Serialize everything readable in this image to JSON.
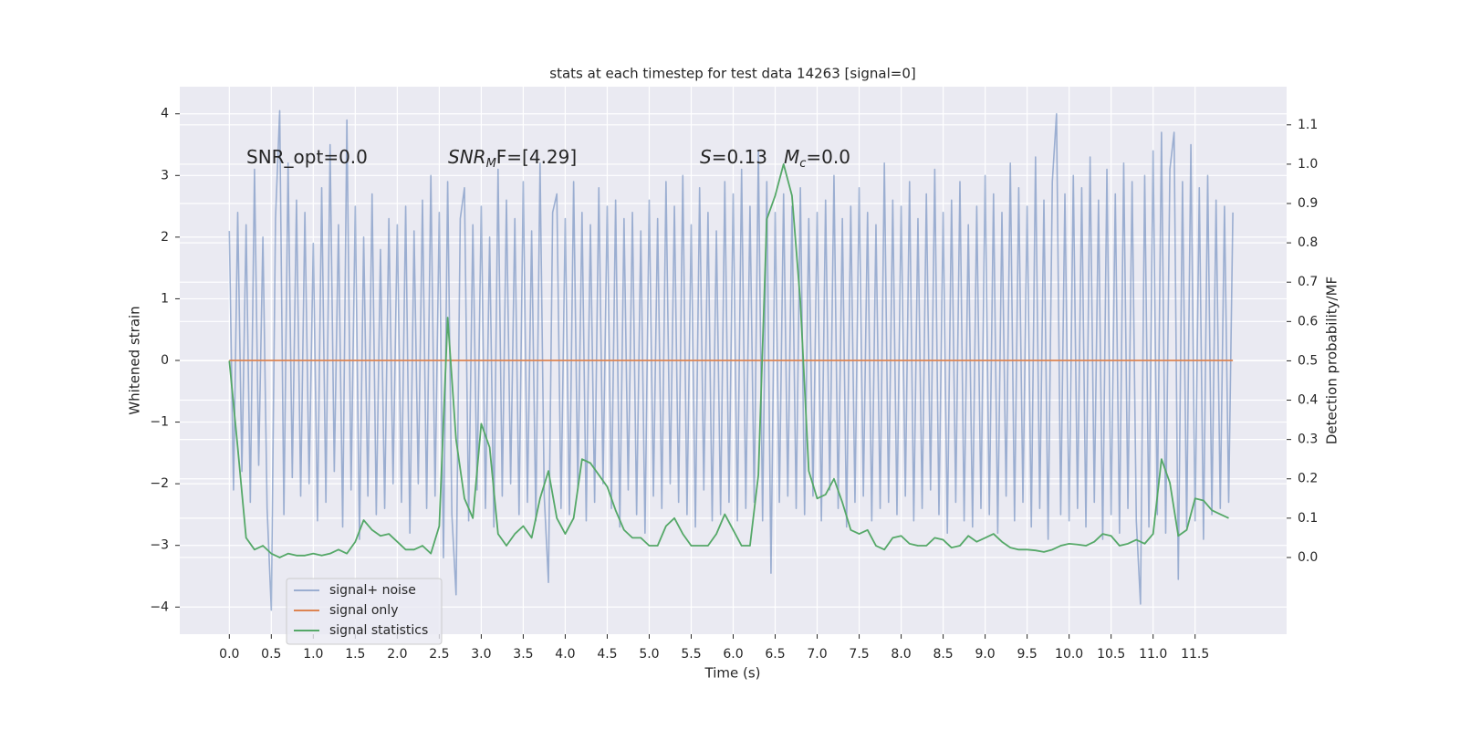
{
  "chart_data": {
    "type": "line",
    "title": "stats at each timestep for test data 14263 [signal=0]",
    "xlabel": "Time (s)",
    "ylabel": "Whitened strain",
    "y2label": "Detection probability/MF",
    "annotations": [
      [
        "SNR_opt=0.0"
      ],
      [
        "SNR",
        "M",
        "F=[4.29]"
      ],
      [
        "S",
        "=0.13"
      ],
      [
        "M",
        "c",
        "=0.0"
      ]
    ],
    "xlim": [
      -0.59,
      12.59
    ],
    "ylim": [
      -4.44,
      4.44
    ],
    "y2lim": [
      -0.195,
      1.197
    ],
    "xticks": [
      {
        "value": 0,
        "label": "0.0"
      },
      {
        "value": 0.5,
        "label": "0.5"
      },
      {
        "value": 1,
        "label": "1.0"
      },
      {
        "value": 1.5,
        "label": "1.5"
      },
      {
        "value": 2,
        "label": "2.0"
      },
      {
        "value": 2.5,
        "label": "2.5"
      },
      {
        "value": 3,
        "label": "3.0"
      },
      {
        "value": 3.5,
        "label": "3.5"
      },
      {
        "value": 4,
        "label": "4.0"
      },
      {
        "value": 4.5,
        "label": "4.5"
      },
      {
        "value": 5,
        "label": "5.0"
      },
      {
        "value": 5.5,
        "label": "5.5"
      },
      {
        "value": 6,
        "label": "6.0"
      },
      {
        "value": 6.5,
        "label": "6.5"
      },
      {
        "value": 7,
        "label": "7.0"
      },
      {
        "value": 7.5,
        "label": "7.5"
      },
      {
        "value": 8,
        "label": "8.0"
      },
      {
        "value": 8.5,
        "label": "8.5"
      },
      {
        "value": 9,
        "label": "9.0"
      },
      {
        "value": 9.5,
        "label": "9.5"
      },
      {
        "value": 10,
        "label": "10.0"
      },
      {
        "value": 10.5,
        "label": "10.5"
      },
      {
        "value": 11,
        "label": "11.0"
      },
      {
        "value": 11.5,
        "label": "11.5"
      }
    ],
    "yticks": [
      {
        "value": -4,
        "label": "−4"
      },
      {
        "value": -3,
        "label": "−3"
      },
      {
        "value": -2,
        "label": "−2"
      },
      {
        "value": -1,
        "label": "−1"
      },
      0,
      1,
      2,
      3,
      4
    ],
    "y2ticks": [
      {
        "value": 0,
        "label": "0.0"
      },
      {
        "value": 0.1,
        "label": "0.1"
      },
      {
        "value": 0.2,
        "label": "0.2"
      },
      {
        "value": 0.3,
        "label": "0.3"
      },
      {
        "value": 0.4,
        "label": "0.4"
      },
      {
        "value": 0.5,
        "label": "0.5"
      },
      {
        "value": 0.6,
        "label": "0.6"
      },
      {
        "value": 0.7,
        "label": "0.7"
      },
      {
        "value": 0.8,
        "label": "0.8"
      },
      {
        "value": 0.9,
        "label": "0.9"
      },
      {
        "value": 1,
        "label": "1.0"
      },
      {
        "value": 1.1,
        "label": "1.1"
      }
    ],
    "grid": true,
    "legend": "lower left",
    "series": [
      {
        "name": "signal+ noise",
        "color": "#4c72b0",
        "alpha": 0.5,
        "x": [
          0,
          0.05,
          0.1,
          0.15,
          0.2,
          0.25,
          0.3,
          0.35,
          0.4,
          0.45,
          0.5,
          0.55,
          0.6,
          0.65,
          0.7,
          0.75,
          0.8,
          0.85,
          0.9,
          0.95,
          1,
          1.05,
          1.1,
          1.15,
          1.2,
          1.25,
          1.3,
          1.35,
          1.4,
          1.45,
          1.5,
          1.55,
          1.6,
          1.65,
          1.7,
          1.75,
          1.8,
          1.85,
          1.9,
          1.95,
          2,
          2.05,
          2.1,
          2.15,
          2.2,
          2.25,
          2.3,
          2.35,
          2.4,
          2.45,
          2.5,
          2.55,
          2.6,
          2.65,
          2.7,
          2.75,
          2.8,
          2.85,
          2.9,
          2.95,
          3,
          3.05,
          3.1,
          3.15,
          3.2,
          3.25,
          3.3,
          3.35,
          3.4,
          3.45,
          3.5,
          3.55,
          3.6,
          3.65,
          3.7,
          3.75,
          3.8,
          3.85,
          3.9,
          3.95,
          4,
          4.05,
          4.1,
          4.15,
          4.2,
          4.25,
          4.3,
          4.35,
          4.4,
          4.45,
          4.5,
          4.55,
          4.6,
          4.65,
          4.7,
          4.75,
          4.8,
          4.85,
          4.9,
          4.95,
          5,
          5.05,
          5.1,
          5.15,
          5.2,
          5.25,
          5.3,
          5.35,
          5.4,
          5.45,
          5.5,
          5.55,
          5.6,
          5.65,
          5.7,
          5.75,
          5.8,
          5.85,
          5.9,
          5.95,
          6,
          6.05,
          6.1,
          6.15,
          6.2,
          6.25,
          6.3,
          6.35,
          6.4,
          6.45,
          6.5,
          6.55,
          6.6,
          6.65,
          6.7,
          6.75,
          6.8,
          6.85,
          6.9,
          6.95,
          7,
          7.05,
          7.1,
          7.15,
          7.2,
          7.25,
          7.3,
          7.35,
          7.4,
          7.45,
          7.5,
          7.55,
          7.6,
          7.65,
          7.7,
          7.75,
          7.8,
          7.85,
          7.9,
          7.95,
          8,
          8.05,
          8.1,
          8.15,
          8.2,
          8.25,
          8.3,
          8.35,
          8.4,
          8.45,
          8.5,
          8.55,
          8.6,
          8.65,
          8.7,
          8.75,
          8.8,
          8.85,
          8.9,
          8.95,
          9,
          9.05,
          9.1,
          9.15,
          9.2,
          9.25,
          9.3,
          9.35,
          9.4,
          9.45,
          9.5,
          9.55,
          9.6,
          9.65,
          9.7,
          9.75,
          9.8,
          9.85,
          9.9,
          9.95,
          10,
          10.05,
          10.1,
          10.15,
          10.2,
          10.25,
          10.3,
          10.35,
          10.4,
          10.45,
          10.5,
          10.55,
          10.6,
          10.65,
          10.7,
          10.75,
          10.8,
          10.85,
          10.9,
          10.95,
          11,
          11.05,
          11.1,
          11.15,
          11.2,
          11.25,
          11.3,
          11.35,
          11.4,
          11.45,
          11.5,
          11.55,
          11.6,
          11.65,
          11.7,
          11.75,
          11.8,
          11.85,
          11.9,
          11.95
        ],
        "values": [
          2.1,
          -2.1,
          2.4,
          -1.8,
          2.2,
          -2.3,
          3.1,
          -1.7,
          2.0,
          -2.4,
          -4.05,
          2.3,
          4.05,
          -2.5,
          3.2,
          -1.9,
          2.6,
          -2.2,
          2.4,
          -2.0,
          1.9,
          -2.6,
          2.8,
          -2.3,
          3.5,
          -1.8,
          2.2,
          -2.7,
          3.9,
          -2.1,
          2.5,
          -2.9,
          2.0,
          -2.2,
          2.7,
          -2.5,
          1.8,
          -2.4,
          2.3,
          -2.0,
          2.2,
          -2.3,
          2.5,
          -2.8,
          2.1,
          -2.0,
          2.6,
          -2.4,
          3.0,
          -2.2,
          2.4,
          -3.2,
          2.9,
          -2.5,
          -3.8,
          2.3,
          2.8,
          -2.6,
          2.2,
          -2.1,
          2.5,
          -2.4,
          2.0,
          -2.7,
          3.1,
          -2.2,
          2.6,
          -2.0,
          2.3,
          -2.5,
          2.9,
          -2.3,
          2.1,
          -2.6,
          3.2,
          -2.2,
          -3.6,
          2.4,
          2.7,
          -2.4,
          2.3,
          -2.5,
          2.9,
          -2.1,
          2.4,
          -2.6,
          2.2,
          -2.3,
          2.8,
          -2.0,
          2.5,
          -2.4,
          2.6,
          -2.7,
          2.3,
          -2.1,
          2.4,
          -2.5,
          2.1,
          -2.8,
          2.6,
          -2.2,
          2.3,
          -2.4,
          2.9,
          -2.0,
          2.5,
          -2.3,
          3.0,
          -2.5,
          2.2,
          -2.7,
          2.8,
          -2.1,
          2.4,
          -2.6,
          2.1,
          -2.5,
          2.9,
          -2.3,
          2.7,
          -2.6,
          3.1,
          -2.4,
          2.5,
          -2.3,
          3.4,
          -2.6,
          2.9,
          -3.45,
          2.4,
          -2.3,
          2.7,
          -2.2,
          2.5,
          -2.4,
          2.8,
          -2.5,
          2.3,
          -2.2,
          2.4,
          -2.6,
          2.6,
          -2.1,
          3.0,
          -2.4,
          2.3,
          -2.7,
          2.5,
          -2.3,
          2.8,
          -2.2,
          2.4,
          -2.6,
          2.2,
          -2.4,
          3.2,
          -2.3,
          2.6,
          -2.5,
          2.5,
          -2.2,
          2.9,
          -2.6,
          2.3,
          -2.4,
          2.7,
          -2.1,
          3.1,
          -2.5,
          2.4,
          -2.8,
          2.6,
          -2.3,
          2.9,
          -2.6,
          2.2,
          -2.7,
          2.5,
          -2.4,
          3.0,
          -2.5,
          2.7,
          -2.8,
          2.4,
          -2.2,
          3.2,
          -2.6,
          2.8,
          -2.3,
          2.5,
          -2.7,
          3.3,
          -2.4,
          2.6,
          -2.9,
          2.9,
          4.0,
          -2.5,
          2.7,
          -2.6,
          3.0,
          -2.4,
          2.8,
          -2.7,
          3.3,
          -2.3,
          2.6,
          -2.9,
          3.1,
          -2.5,
          2.7,
          -2.8,
          3.2,
          -2.4,
          2.9,
          -2.6,
          -3.95,
          3.0,
          -2.7,
          3.4,
          -2.5,
          3.7,
          -2.8,
          3.1,
          3.7,
          -3.55,
          2.9,
          -2.7,
          3.5,
          -2.6,
          2.8,
          -2.9,
          3.0,
          -2.5,
          2.6,
          -2.4,
          2.5,
          -2.3,
          2.4
        ]
      },
      {
        "name": "signal only",
        "color": "#dd8452",
        "alpha": 1,
        "x": [
          0,
          11.95
        ],
        "values": [
          0,
          0
        ]
      },
      {
        "name": "signal statistics",
        "color": "#55a868",
        "alpha": 1,
        "axis": "y2",
        "x": [
          0,
          0.1,
          0.2,
          0.3,
          0.4,
          0.5,
          0.6,
          0.7,
          0.8,
          0.9,
          1,
          1.1,
          1.2,
          1.3,
          1.4,
          1.5,
          1.6,
          1.7,
          1.8,
          1.9,
          2,
          2.1,
          2.2,
          2.3,
          2.4,
          2.5,
          2.6,
          2.7,
          2.8,
          2.9,
          3,
          3.1,
          3.2,
          3.3,
          3.4,
          3.5,
          3.6,
          3.7,
          3.8,
          3.9,
          4,
          4.1,
          4.2,
          4.3,
          4.4,
          4.5,
          4.6,
          4.7,
          4.8,
          4.9,
          5,
          5.1,
          5.2,
          5.3,
          5.4,
          5.5,
          5.6,
          5.7,
          5.8,
          5.9,
          6,
          6.1,
          6.2,
          6.3,
          6.4,
          6.5,
          6.6,
          6.7,
          6.8,
          6.9,
          7,
          7.1,
          7.2,
          7.3,
          7.4,
          7.5,
          7.6,
          7.7,
          7.8,
          7.9,
          8,
          8.1,
          8.2,
          8.3,
          8.4,
          8.5,
          8.6,
          8.7,
          8.8,
          8.9,
          9,
          9.1,
          9.2,
          9.3,
          9.4,
          9.5,
          9.6,
          9.7,
          9.8,
          9.9,
          10,
          10.1,
          10.2,
          10.3,
          10.4,
          10.5,
          10.6,
          10.7,
          10.8,
          10.9,
          11,
          11.1,
          11.2,
          11.3,
          11.4,
          11.5,
          11.6,
          11.7,
          11.8,
          11.9
        ],
        "values": [
          0.5,
          0.28,
          0.05,
          0.02,
          0.03,
          0.01,
          0.0,
          0.01,
          0.005,
          0.005,
          0.01,
          0.005,
          0.01,
          0.02,
          0.01,
          0.04,
          0.095,
          0.07,
          0.055,
          0.06,
          0.04,
          0.02,
          0.02,
          0.03,
          0.01,
          0.08,
          0.61,
          0.3,
          0.15,
          0.1,
          0.34,
          0.28,
          0.06,
          0.03,
          0.06,
          0.08,
          0.05,
          0.15,
          0.22,
          0.1,
          0.06,
          0.1,
          0.25,
          0.24,
          0.21,
          0.18,
          0.12,
          0.07,
          0.05,
          0.05,
          0.03,
          0.03,
          0.08,
          0.1,
          0.06,
          0.03,
          0.03,
          0.03,
          0.06,
          0.11,
          0.07,
          0.03,
          0.03,
          0.21,
          0.86,
          0.92,
          1.0,
          0.92,
          0.65,
          0.22,
          0.15,
          0.16,
          0.2,
          0.14,
          0.07,
          0.06,
          0.07,
          0.03,
          0.02,
          0.05,
          0.055,
          0.035,
          0.03,
          0.03,
          0.05,
          0.045,
          0.025,
          0.03,
          0.055,
          0.04,
          0.05,
          0.06,
          0.04,
          0.025,
          0.02,
          0.02,
          0.018,
          0.014,
          0.02,
          0.03,
          0.035,
          0.033,
          0.03,
          0.04,
          0.06,
          0.055,
          0.03,
          0.035,
          0.045,
          0.035,
          0.06,
          0.25,
          0.19,
          0.055,
          0.07,
          0.15,
          0.145,
          0.12,
          0.11,
          0.1
        ]
      }
    ]
  }
}
